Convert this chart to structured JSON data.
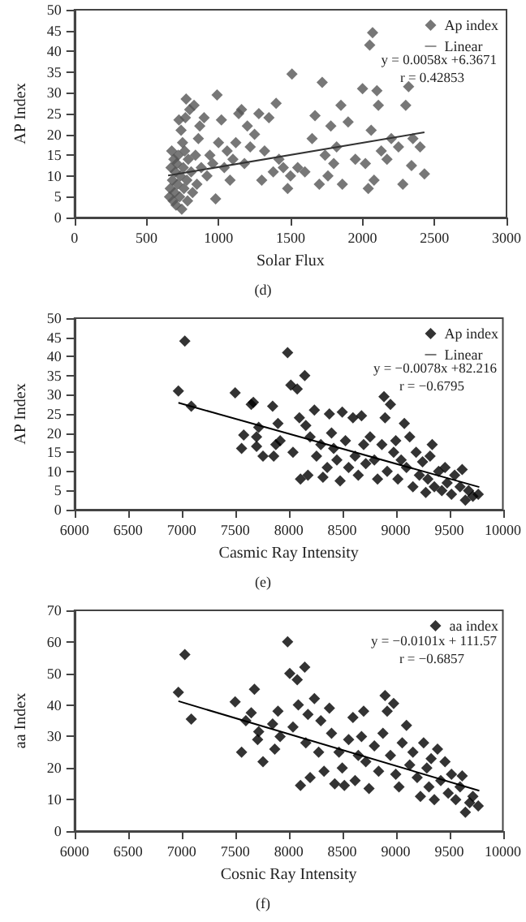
{
  "chart_data": [
    {
      "type": "scatter",
      "title": "(d)",
      "xlabel": "Solar Flux",
      "ylabel": "AP Index",
      "xlim": [
        0,
        3000
      ],
      "xticks": [
        0,
        500,
        1000,
        1500,
        2000,
        2500,
        3000
      ],
      "ylim": [
        0,
        50
      ],
      "yticks": [
        0,
        5,
        10,
        15,
        20,
        25,
        30,
        35,
        40,
        45,
        50
      ],
      "grid": false,
      "legend": "top right",
      "marker": "diamond",
      "annotations": [
        "y = 0.0058x +6.3671",
        "r = 0.42853"
      ],
      "series": [
        {
          "name": "Ap index",
          "color": "#555555",
          "x": [
            660,
            665,
            670,
            675,
            680,
            685,
            690,
            695,
            700,
            705,
            710,
            715,
            720,
            725,
            730,
            735,
            740,
            745,
            750,
            755,
            760,
            765,
            770,
            775,
            780,
            785,
            790,
            800,
            810,
            820,
            830,
            840,
            850,
            860,
            870,
            880,
            900,
            920,
            940,
            960,
            980,
            990,
            1000,
            1020,
            1040,
            1060,
            1080,
            1100,
            1120,
            1140,
            1160,
            1180,
            1200,
            1220,
            1250,
            1280,
            1300,
            1320,
            1350,
            1380,
            1400,
            1420,
            1450,
            1480,
            1500,
            1510,
            1550,
            1600,
            1650,
            1670,
            1700,
            1720,
            1740,
            1760,
            1780,
            1800,
            1820,
            1850,
            1860,
            1900,
            1950,
            2000,
            2020,
            2040,
            2050,
            2060,
            2070,
            2080,
            2100,
            2110,
            2130,
            2170,
            2200,
            2250,
            2280,
            2300,
            2320,
            2340,
            2350,
            2400,
            2430
          ],
          "values": [
            5,
            7,
            12,
            16,
            9,
            4,
            14,
            6,
            11,
            3,
            13,
            8,
            15,
            23.5,
            5,
            10,
            21,
            2,
            18,
            12,
            7,
            16,
            24,
            28.5,
            9,
            4,
            14,
            26,
            11,
            6,
            27,
            15,
            8,
            19,
            22,
            12,
            24,
            10,
            15,
            13,
            4.5,
            29.5,
            18,
            23.5,
            12,
            16,
            9,
            14,
            18,
            25,
            26,
            13,
            22,
            17,
            20,
            25,
            9,
            16,
            24,
            11,
            27.5,
            14,
            12,
            7,
            10,
            34.5,
            12,
            11,
            19,
            24.5,
            8,
            32.5,
            15,
            10,
            22,
            13,
            17,
            27,
            8,
            23,
            14,
            31,
            13,
            7,
            41.5,
            21,
            44.5,
            9,
            30.5,
            27,
            16,
            14,
            19,
            17,
            8,
            27,
            31.5,
            12.5,
            19,
            17,
            10.5
          ]
        },
        {
          "name": "Linear",
          "type": "line",
          "color": "#333333",
          "marker": "none",
          "x": [
            650,
            2430
          ],
          "values": [
            10.1,
            20.5
          ]
        }
      ]
    },
    {
      "type": "scatter",
      "title": "(e)",
      "xlabel": "Casmic Ray Intensity",
      "ylabel": "AP Index",
      "xlim": [
        6000,
        10000
      ],
      "xticks": [
        6000,
        6500,
        7000,
        7500,
        8000,
        8500,
        9000,
        9500,
        10000
      ],
      "ylim": [
        0,
        50
      ],
      "yticks": [
        0,
        5,
        10,
        15,
        20,
        25,
        30,
        35,
        40,
        45,
        50
      ],
      "grid": false,
      "legend": "top right",
      "marker": "diamond",
      "annotations": [
        "y = −0.0078x +82.216",
        "r = −0.6795"
      ],
      "series": [
        {
          "name": "Ap index",
          "color": "#000000",
          "x": [
            6970,
            7030,
            7090,
            7500,
            7560,
            7580,
            7650,
            7670,
            7700,
            7700,
            7720,
            7760,
            7850,
            7860,
            7880,
            7900,
            7920,
            7990,
            8020,
            8040,
            8080,
            8100,
            8110,
            8150,
            8160,
            8180,
            8200,
            8240,
            8260,
            8300,
            8320,
            8360,
            8380,
            8400,
            8420,
            8450,
            8480,
            8500,
            8530,
            8560,
            8600,
            8620,
            8650,
            8680,
            8700,
            8720,
            8760,
            8800,
            8830,
            8870,
            8890,
            8900,
            8920,
            8950,
            8980,
            9000,
            9020,
            9050,
            9080,
            9100,
            9130,
            9160,
            9190,
            9220,
            9250,
            9280,
            9300,
            9320,
            9340,
            9360,
            9400,
            9430,
            9460,
            9480,
            9520,
            9550,
            9600,
            9620,
            9650,
            9680,
            9720,
            9770
          ],
          "values": [
            31,
            44,
            27,
            30.5,
            16,
            19.5,
            27.5,
            28,
            19,
            16.5,
            21.5,
            14,
            27,
            14,
            17,
            22.5,
            18,
            41,
            32.5,
            15,
            31.5,
            24,
            8,
            35,
            22,
            9,
            19,
            26,
            14,
            17,
            8.5,
            11,
            25,
            20,
            16,
            13,
            7.5,
            25.5,
            18,
            11,
            24,
            14,
            9,
            24.5,
            17,
            12,
            19,
            13,
            8,
            17,
            29.5,
            24,
            10,
            27.5,
            15,
            18,
            8,
            13,
            22.5,
            11,
            19,
            6,
            15,
            9,
            12.5,
            4.5,
            8,
            14,
            17,
            6,
            10,
            5,
            11,
            7,
            4,
            9,
            6,
            10.5,
            2.5,
            5,
            3.5,
            4
          ]
        },
        {
          "name": "Linear",
          "type": "line",
          "color": "#000000",
          "marker": "none",
          "x": [
            6970,
            9780
          ],
          "values": [
            27.9,
            5.9
          ]
        }
      ]
    },
    {
      "type": "scatter",
      "title": "(f)",
      "xlabel": "Cosnic Ray Intensity",
      "ylabel": "aa Index",
      "xlim": [
        6000,
        10000
      ],
      "xticks": [
        6000,
        6500,
        7000,
        7500,
        8000,
        8500,
        9000,
        9500,
        10000
      ],
      "ylim": [
        0,
        70
      ],
      "yticks": [
        0,
        10,
        20,
        30,
        40,
        50,
        60,
        70
      ],
      "grid": false,
      "legend": "top right",
      "marker": "diamond",
      "annotations": [
        "y = −0.0101x + 111.57",
        "r = −0.6857"
      ],
      "series": [
        {
          "name": "aa index",
          "color": "#000000",
          "x": [
            6970,
            7030,
            7090,
            7500,
            7560,
            7600,
            7650,
            7680,
            7710,
            7720,
            7760,
            7850,
            7870,
            7900,
            7920,
            7990,
            8010,
            8040,
            8080,
            8090,
            8110,
            8150,
            8160,
            8180,
            8200,
            8240,
            8280,
            8300,
            8330,
            8380,
            8400,
            8430,
            8470,
            8500,
            8520,
            8560,
            8600,
            8620,
            8650,
            8680,
            8700,
            8720,
            8750,
            8800,
            8840,
            8880,
            8900,
            8920,
            8950,
            8980,
            9000,
            9030,
            9060,
            9100,
            9130,
            9160,
            9200,
            9230,
            9260,
            9290,
            9310,
            9330,
            9360,
            9390,
            9420,
            9460,
            9490,
            9520,
            9560,
            9600,
            9620,
            9650,
            9690,
            9720,
            9770
          ],
          "values": [
            44,
            56,
            35.5,
            41,
            25,
            35,
            37.5,
            45,
            29,
            31.5,
            22,
            34,
            26,
            38,
            30,
            60,
            50,
            33,
            48,
            40,
            14.5,
            52,
            28,
            37,
            17,
            42,
            25,
            35,
            19,
            39,
            31,
            15,
            25,
            20,
            14.5,
            29,
            36,
            16,
            24,
            30,
            38,
            22,
            13.5,
            27,
            19,
            31,
            43,
            38,
            24,
            40.5,
            18,
            14,
            28,
            33.5,
            21,
            25,
            17,
            11,
            28,
            20,
            14,
            23,
            10,
            26,
            16,
            22,
            12,
            18,
            10,
            14,
            17.5,
            6,
            9,
            11,
            8
          ]
        },
        {
          "type": "line",
          "color": "#000000",
          "marker": "none",
          "x": [
            6970,
            9780
          ],
          "values": [
            41.2,
            12.8
          ]
        }
      ]
    }
  ]
}
